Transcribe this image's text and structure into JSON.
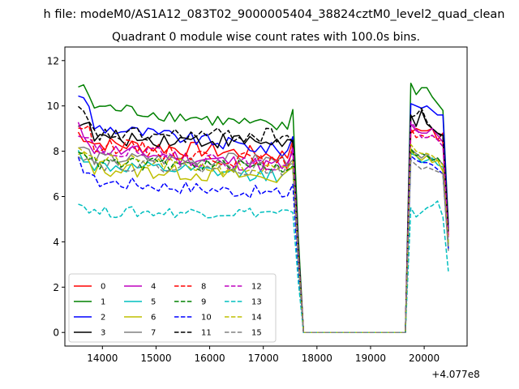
{
  "chart_data": {
    "type": "line",
    "suptitle": "h file: modeM0/AS1A12_083T02_9000005404_38824cztM0_level2_quad_clean",
    "title": "Quadrant 0 module wise count rates with 100.0s bins.",
    "xlabel": "",
    "ylabel": "",
    "x_offset_label": "+4.077e8",
    "xlim": [
      13300,
      20800
    ],
    "ylim": [
      -0.6,
      12.6
    ],
    "x_ticks": [
      14000,
      15000,
      16000,
      17000,
      18000,
      19000,
      20000
    ],
    "y_ticks": [
      0,
      2,
      4,
      6,
      8,
      10,
      12
    ],
    "legend_position": "lower-left",
    "x_start": 13550,
    "x_step": 100,
    "gap_start": 17750,
    "gap_end": 19650,
    "resume_x": 19750,
    "end_x": 20450,
    "series": [
      {
        "name": "0",
        "color": "#ff0000",
        "dashed": false,
        "pre_level": 8.2,
        "pre_start": 8.8,
        "drift": -0.2,
        "noise": 0.35,
        "post": [
          8.8,
          9.0,
          8.9,
          8.9,
          9.0,
          8.5,
          8.8,
          4.3
        ]
      },
      {
        "name": "1",
        "color": "#008000",
        "dashed": false,
        "pre_level": 9.6,
        "pre_start": 10.9,
        "drift": -0.3,
        "noise": 0.3,
        "post": [
          11.0,
          10.5,
          10.8,
          10.8,
          10.4,
          10.1,
          9.8,
          4.8
        ]
      },
      {
        "name": "2",
        "color": "#0000ff",
        "dashed": false,
        "pre_level": 8.4,
        "pre_start": 10.6,
        "drift": -0.2,
        "noise": 0.3,
        "post": [
          10.1,
          10.0,
          9.9,
          10.0,
          9.8,
          9.6,
          9.6,
          4.6
        ]
      },
      {
        "name": "3",
        "color": "#000000",
        "dashed": false,
        "pre_level": 8.2,
        "pre_start": 9.4,
        "drift": 0.1,
        "noise": 0.35,
        "post": [
          9.6,
          9.1,
          9.8,
          9.2,
          9.0,
          8.8,
          8.7,
          4.5
        ]
      },
      {
        "name": "4",
        "color": "#bf00bf",
        "dashed": false,
        "pre_level": 7.7,
        "pre_start": 9.0,
        "drift": -0.2,
        "noise": 0.35,
        "post": [
          9.2,
          8.9,
          8.8,
          8.8,
          9.0,
          8.7,
          8.4,
          4.2
        ]
      },
      {
        "name": "5",
        "color": "#00bfbf",
        "dashed": false,
        "pre_level": 7.1,
        "pre_start": 7.9,
        "drift": -0.1,
        "noise": 0.3,
        "post": [
          7.9,
          7.8,
          7.5,
          7.6,
          7.7,
          7.4,
          7.3,
          3.8
        ]
      },
      {
        "name": "6",
        "color": "#bfbf00",
        "dashed": false,
        "pre_level": 7.0,
        "pre_start": 7.8,
        "drift": -0.1,
        "noise": 0.35,
        "post": [
          8.0,
          7.8,
          7.6,
          7.8,
          7.5,
          7.6,
          7.1,
          3.7
        ]
      },
      {
        "name": "7",
        "color": "#808080",
        "dashed": false,
        "pre_level": 7.4,
        "pre_start": 8.2,
        "drift": 0.1,
        "noise": 0.3,
        "post": [
          8.1,
          7.9,
          7.7,
          7.9,
          7.6,
          7.7,
          7.4,
          3.9
        ]
      },
      {
        "name": "8",
        "color": "#ff0000",
        "dashed": true,
        "pre_level": 8.0,
        "pre_start": 9.2,
        "drift": -0.3,
        "noise": 0.35,
        "post": [
          9.0,
          8.6,
          8.7,
          8.6,
          8.7,
          8.5,
          8.4,
          4.3
        ]
      },
      {
        "name": "9",
        "color": "#008000",
        "dashed": true,
        "pre_level": 7.1,
        "pre_start": 8.2,
        "drift": 0.1,
        "noise": 0.3,
        "post": [
          8.1,
          7.8,
          7.9,
          7.8,
          7.6,
          7.7,
          7.4,
          3.9
        ]
      },
      {
        "name": "10",
        "color": "#0000ff",
        "dashed": true,
        "pre_level": 6.3,
        "pre_start": 7.5,
        "drift": -0.1,
        "noise": 0.3,
        "post": [
          7.8,
          7.6,
          7.5,
          7.5,
          7.4,
          7.2,
          7.0,
          3.7
        ]
      },
      {
        "name": "11",
        "color": "#000000",
        "dashed": true,
        "pre_level": 8.1,
        "pre_start": 9.8,
        "drift": 0.3,
        "noise": 0.35,
        "post": [
          9.5,
          9.6,
          9.9,
          9.3,
          9.0,
          8.8,
          8.6,
          4.4
        ]
      },
      {
        "name": "12",
        "color": "#bf00bf",
        "dashed": true,
        "pre_level": 7.9,
        "pre_start": 8.6,
        "drift": -0.3,
        "noise": 0.35,
        "post": [
          9.3,
          9.0,
          8.6,
          8.6,
          8.7,
          8.5,
          8.2,
          4.2
        ]
      },
      {
        "name": "13",
        "color": "#00bfbf",
        "dashed": true,
        "pre_level": 5.1,
        "pre_start": 5.7,
        "drift": 0.1,
        "noise": 0.25,
        "post": [
          5.5,
          5.1,
          5.3,
          5.5,
          5.6,
          5.8,
          5.1,
          2.7
        ]
      },
      {
        "name": "14",
        "color": "#bfbf00",
        "dashed": true,
        "pre_level": 7.3,
        "pre_start": 8.3,
        "drift": -0.1,
        "noise": 0.3,
        "post": [
          8.3,
          8.0,
          7.9,
          7.9,
          7.8,
          7.6,
          7.4,
          3.8
        ]
      },
      {
        "name": "15",
        "color": "#808080",
        "dashed": true,
        "pre_level": 7.2,
        "pre_start": 8.0,
        "drift": 0.0,
        "noise": 0.3,
        "post": [
          7.6,
          7.4,
          7.2,
          7.3,
          7.2,
          7.1,
          7.0,
          3.6
        ]
      }
    ]
  }
}
